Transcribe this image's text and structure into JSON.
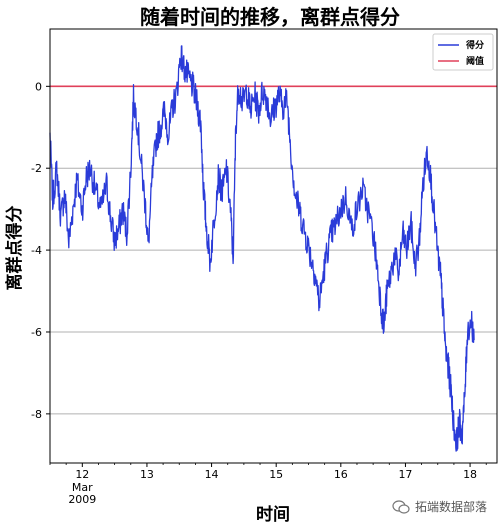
{
  "chart_data": {
    "type": "line",
    "title": "随着时间的推移，离群点得分",
    "xlabel": "时间",
    "ylabel": "离群点得分",
    "x_ticks": [
      {
        "label": "12",
        "sub": [
          "Mar",
          "2009"
        ]
      },
      {
        "label": "13"
      },
      {
        "label": "14"
      },
      {
        "label": "15"
      },
      {
        "label": "16"
      },
      {
        "label": "17"
      },
      {
        "label": "18"
      }
    ],
    "xlim": [
      "2009-03-11T12:00",
      "2009-03-18T10:00"
    ],
    "ylim": [
      -9.2,
      1.4
    ],
    "y_ticks": [
      0,
      -2,
      -4,
      -6,
      -8
    ],
    "grid": {
      "y": true,
      "x": false
    },
    "legend": {
      "placement": "top-right",
      "entries": [
        "得分",
        "阈值"
      ]
    },
    "colors": {
      "score": "#2a3bd8",
      "threshold": "#e0405a",
      "grid": "#b0b0b0"
    },
    "series": [
      {
        "name": "得分",
        "points": [
          [
            "03-11 12:00",
            -1.2
          ],
          [
            "03-11 13:00",
            -2.8
          ],
          [
            "03-11 14:30",
            -2.0
          ],
          [
            "03-11 16:00",
            -3.2
          ],
          [
            "03-11 17:30",
            -2.6
          ],
          [
            "03-11 19:00",
            -3.8
          ],
          [
            "03-11 20:30",
            -3.0
          ],
          [
            "03-11 22:00",
            -2.3
          ],
          [
            "03-12 00:00",
            -3.0
          ],
          [
            "03-12 01:30",
            -2.2
          ],
          [
            "03-12 03:00",
            -2.0
          ],
          [
            "03-12 05:00",
            -2.6
          ],
          [
            "03-12 07:00",
            -3.0
          ],
          [
            "03-12 09:00",
            -2.4
          ],
          [
            "03-12 10:30",
            -3.2
          ],
          [
            "03-12 12:00",
            -3.8
          ],
          [
            "03-12 13:30",
            -3.5
          ],
          [
            "03-12 15:00",
            -3.0
          ],
          [
            "03-12 16:30",
            -3.6
          ],
          [
            "03-12 18:00",
            -2.0
          ],
          [
            "03-12 19:00",
            -0.3
          ],
          [
            "03-12 20:30",
            -0.9
          ],
          [
            "03-12 22:00",
            -2.0
          ],
          [
            "03-12 23:30",
            -3.0
          ],
          [
            "03-13 00:30",
            -3.9
          ],
          [
            "03-13 02:00",
            -2.2
          ],
          [
            "03-13 03:30",
            -1.3
          ],
          [
            "03-13 05:00",
            -1.0
          ],
          [
            "03-13 06:30",
            -0.6
          ],
          [
            "03-13 08:00",
            -1.2
          ],
          [
            "03-13 09:30",
            -0.5
          ],
          [
            "03-13 11:00",
            -0.2
          ],
          [
            "03-13 12:30",
            0.8
          ],
          [
            "03-13 14:00",
            0.4
          ],
          [
            "03-13 15:30",
            0.2
          ],
          [
            "03-13 17:00",
            0.0
          ],
          [
            "03-13 18:30",
            -0.4
          ],
          [
            "03-13 20:00",
            -0.9
          ],
          [
            "03-13 21:00",
            -2.5
          ],
          [
            "03-13 22:00",
            -3.4
          ],
          [
            "03-13 23:30",
            -4.3
          ],
          [
            "03-14 01:00",
            -3.2
          ],
          [
            "03-14 02:30",
            -2.2
          ],
          [
            "03-14 04:00",
            -2.6
          ],
          [
            "03-14 05:30",
            -2.0
          ],
          [
            "03-14 07:00",
            -3.0
          ],
          [
            "03-14 08:00",
            -4.2
          ],
          [
            "03-14 09:00",
            -1.0
          ],
          [
            "03-14 10:00",
            0.0
          ],
          [
            "03-14 11:30",
            -0.4
          ],
          [
            "03-14 13:00",
            -0.1
          ],
          [
            "03-14 14:30",
            -0.6
          ],
          [
            "03-14 16:00",
            -0.2
          ],
          [
            "03-14 17:30",
            -0.6
          ],
          [
            "03-14 19:00",
            -0.1
          ],
          [
            "03-14 20:30",
            -0.3
          ],
          [
            "03-14 22:00",
            -0.8
          ],
          [
            "03-14 23:30",
            -0.5
          ],
          [
            "03-15 01:00",
            -0.2
          ],
          [
            "03-15 02:30",
            -0.5
          ],
          [
            "03-15 04:00",
            -0.3
          ],
          [
            "03-15 05:30",
            -1.6
          ],
          [
            "03-15 07:00",
            -2.6
          ],
          [
            "03-15 08:30",
            -3.0
          ],
          [
            "03-15 10:00",
            -3.4
          ],
          [
            "03-15 11:30",
            -3.8
          ],
          [
            "03-15 13:00",
            -4.2
          ],
          [
            "03-15 14:30",
            -4.6
          ],
          [
            "03-15 16:00",
            -5.3
          ],
          [
            "03-15 17:30",
            -4.6
          ],
          [
            "03-15 19:00",
            -4.0
          ],
          [
            "03-15 20:30",
            -3.6
          ],
          [
            "03-15 22:00",
            -3.4
          ],
          [
            "03-16 00:00",
            -3.0
          ],
          [
            "03-16 02:00",
            -2.7
          ],
          [
            "03-16 04:00",
            -3.5
          ],
          [
            "03-16 06:00",
            -3.0
          ],
          [
            "03-16 08:00",
            -2.5
          ],
          [
            "03-16 10:00",
            -3.0
          ],
          [
            "03-16 12:00",
            -3.6
          ],
          [
            "03-16 13:30",
            -4.4
          ],
          [
            "03-16 15:00",
            -5.4
          ],
          [
            "03-16 16:00",
            -5.9
          ],
          [
            "03-16 17:00",
            -5.1
          ],
          [
            "03-16 18:30",
            -4.6
          ],
          [
            "03-16 20:00",
            -4.1
          ],
          [
            "03-16 21:30",
            -4.6
          ],
          [
            "03-16 23:00",
            -3.6
          ],
          [
            "03-17 00:30",
            -4.0
          ],
          [
            "03-17 02:00",
            -3.3
          ],
          [
            "03-17 03:30",
            -4.4
          ],
          [
            "03-17 05:00",
            -3.9
          ],
          [
            "03-17 06:30",
            -2.4
          ],
          [
            "03-17 08:00",
            -1.6
          ],
          [
            "03-17 09:00",
            -2.0
          ],
          [
            "03-17 10:30",
            -3.0
          ],
          [
            "03-17 12:00",
            -4.1
          ],
          [
            "03-17 13:00",
            -4.6
          ],
          [
            "03-17 14:00",
            -5.5
          ],
          [
            "03-17 15:00",
            -6.5
          ],
          [
            "03-17 16:00",
            -6.9
          ],
          [
            "03-17 17:00",
            -7.5
          ],
          [
            "03-17 18:00",
            -8.3
          ],
          [
            "03-17 19:00",
            -8.7
          ],
          [
            "03-17 20:00",
            -8.2
          ],
          [
            "03-17 21:00",
            -8.5
          ],
          [
            "03-17 22:00",
            -7.6
          ],
          [
            "03-17 23:00",
            -6.0
          ],
          [
            "03-18 00:30",
            -5.7
          ],
          [
            "03-18 01:30",
            -6.2
          ]
        ]
      },
      {
        "name": "阈值",
        "constant": 0
      }
    ]
  },
  "watermark": {
    "text": "拓端数据部落",
    "icon": "wechat-icon"
  }
}
